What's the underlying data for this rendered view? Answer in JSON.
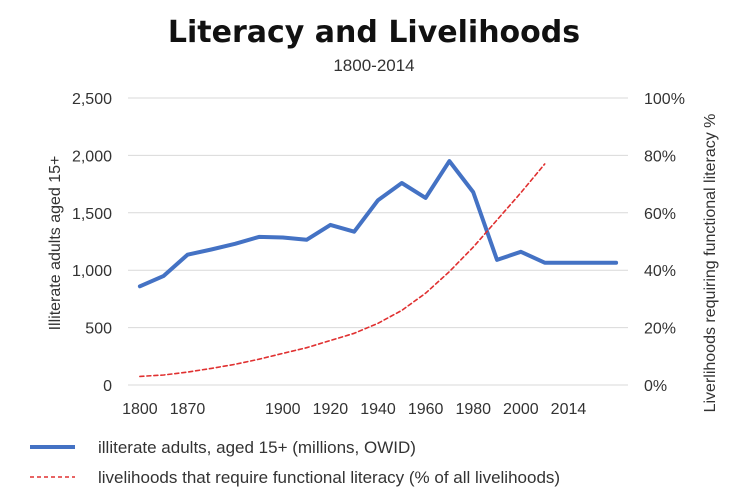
{
  "chart_data": {
    "type": "line",
    "title": "Literacy and Livelihoods",
    "subtitle": "1800-2014",
    "ylabel_left": "Illiterate adults aged 15+",
    "ylabel_right": "Liverlihoods requiring functional literacy %",
    "x_ticks": [
      "1800",
      "1870",
      "1900",
      "1920",
      "1940",
      "1960",
      "1980",
      "2000",
      "2014"
    ],
    "y_left": {
      "min": 0,
      "max": 2500,
      "ticks": [
        "0",
        "500",
        "1,000",
        "1,500",
        "2,000",
        "2,500"
      ]
    },
    "y_right": {
      "min": 0,
      "max": 100,
      "ticks": [
        "0%",
        "20%",
        "40%",
        "60%",
        "80%",
        "100%"
      ]
    },
    "series": [
      {
        "name": "illiterate adults, aged 15+ (millions, OWID)",
        "axis": "left",
        "style": "solid",
        "color": "#4472c4",
        "x": [
          0,
          1,
          2,
          3,
          4,
          5,
          6,
          7,
          8,
          9,
          10,
          11,
          12,
          13,
          14,
          15,
          16,
          17,
          18,
          19,
          20
        ],
        "values": [
          860,
          950,
          1135,
          1180,
          1230,
          1290,
          1285,
          1265,
          1395,
          1335,
          1610,
          1760,
          1630,
          1950,
          1680,
          1090,
          1160,
          1065,
          1065,
          1065,
          1065
        ]
      },
      {
        "name": "livelihoods that require functional literacy (% of all livelihoods)",
        "axis": "right",
        "style": "dashed",
        "color": "#e03030",
        "x": [
          0,
          1,
          2,
          3,
          4,
          5,
          6,
          7,
          8,
          9,
          10,
          11,
          12,
          13,
          14,
          15,
          16,
          17
        ],
        "values": [
          3,
          3.5,
          4.5,
          5.8,
          7.2,
          9,
          11,
          13,
          15.5,
          18,
          21.5,
          26,
          32,
          39.5,
          48,
          57.5,
          67,
          77
        ]
      }
    ],
    "legend_position": "bottom-left",
    "grid": true
  }
}
